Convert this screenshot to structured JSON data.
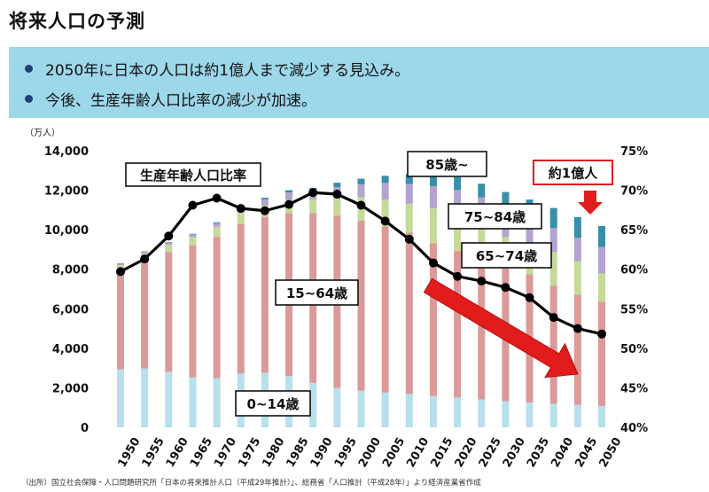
{
  "page_title": "将来人口の予測",
  "summary": {
    "bullets": [
      "2050年に日本の人口は約1億人まで減少する見込み。",
      "今後、生産年齢人口比率の減少が加速。"
    ]
  },
  "footnote": "（出所）国立社会保障・人口問題研究所「日本の将来推計人口（平成29年推計）」、総務省「人口推計（平成28年）」より経済産業省作成",
  "chart_data": {
    "type": "bar",
    "stacked": true,
    "left_axis": {
      "unit_label": "（万人）",
      "ylim": [
        0,
        14000
      ],
      "ticks": [
        "0",
        "2,000",
        "4,000",
        "6,000",
        "8,000",
        "10,000",
        "12,000",
        "14,000"
      ]
    },
    "right_axis": {
      "ylim": [
        40,
        75
      ],
      "ticks": [
        "40%",
        "45%",
        "50%",
        "55%",
        "60%",
        "65%",
        "70%",
        "75%"
      ]
    },
    "categories": [
      "1950",
      "1955",
      "1960",
      "1965",
      "1970",
      "1975",
      "1980",
      "1985",
      "1990",
      "1995",
      "2000",
      "2005",
      "2010",
      "2015",
      "2020",
      "2025",
      "2030",
      "2035",
      "2040",
      "2045",
      "2050"
    ],
    "series": [
      {
        "name": "0~14歳",
        "color": "#b7e0ec",
        "values": [
          2940,
          2980,
          2810,
          2520,
          2480,
          2720,
          2750,
          2600,
          2250,
          2000,
          1850,
          1760,
          1680,
          1590,
          1510,
          1410,
          1320,
          1250,
          1190,
          1140,
          1080
        ]
      },
      {
        "name": "15~64歳",
        "color": "#da9a9a",
        "values": [
          4960,
          5470,
          6050,
          6690,
          7160,
          7580,
          7880,
          8250,
          8590,
          8720,
          8620,
          8410,
          8170,
          7730,
          7410,
          7170,
          6880,
          6490,
          5980,
          5580,
          5280
        ]
      },
      {
        "name": "65~74歳",
        "color": "#c5d99b",
        "values": [
          310,
          350,
          380,
          420,
          520,
          550,
          580,
          650,
          680,
          850,
          1180,
          1350,
          1470,
          1780,
          1740,
          1500,
          1430,
          1480,
          1700,
          1690,
          1430
        ]
      },
      {
        "name": "75~84歳",
        "color": "#b4a3cc",
        "values": [
          70,
          80,
          100,
          120,
          170,
          220,
          330,
          390,
          450,
          580,
          650,
          850,
          1000,
          1100,
          1350,
          1550,
          1450,
          1310,
          1210,
          1180,
          1330
        ]
      },
      {
        "name": "85歳~",
        "color": "#3a8ea8",
        "values": [
          20,
          25,
          30,
          40,
          50,
          60,
          80,
          110,
          150,
          230,
          280,
          360,
          500,
          600,
          650,
          700,
          830,
          1000,
          1020,
          1050,
          1070
        ]
      }
    ],
    "line": {
      "name": "生産年齢人口比率",
      "values": [
        59.7,
        61.3,
        64.2,
        68.1,
        69.0,
        67.7,
        67.4,
        68.2,
        69.7,
        69.5,
        68.1,
        66.1,
        63.8,
        60.8,
        59.1,
        58.5,
        57.7,
        56.4,
        53.9,
        52.5,
        51.8
      ]
    },
    "annotations": [
      {
        "text": "生産年齢人口比率",
        "target": "line"
      },
      {
        "text": "15~64歳",
        "target": "15~64歳"
      },
      {
        "text": "0~14歳",
        "target": "0~14歳"
      },
      {
        "text": "85歳~",
        "target": "85歳~"
      },
      {
        "text": "75~84歳",
        "target": "75~84歳"
      },
      {
        "text": "65~74歳",
        "target": "65~74歳"
      },
      {
        "text": "約1億人",
        "target": "2050",
        "color": "#e21b1b"
      }
    ],
    "trend_arrow_color": "#e21b1b",
    "line_color": "#000000"
  }
}
